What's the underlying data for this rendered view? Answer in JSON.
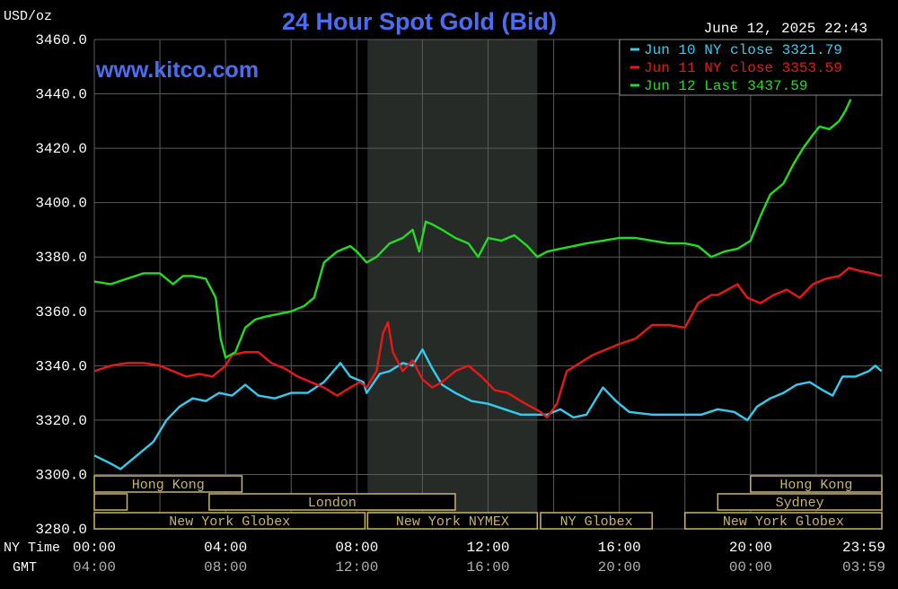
{
  "header": {
    "unit": "USD/oz",
    "title": "24 Hour Spot Gold (Bid)",
    "timestamp": "June 12, 2025 22:43",
    "watermark": "www.kitco.com"
  },
  "colors": {
    "background": "#000000",
    "grid": "#5a5a5a",
    "axis_text": "#ffffff",
    "time_text": "#b0b0b0",
    "title": "#4d6df0",
    "session_box": "#c9b46a",
    "nymex_shade": "#272b27"
  },
  "time_axis": {
    "ny_label": "NY Time",
    "gmt_label": "GMT",
    "ny_ticks": [
      "00:00",
      "04:00",
      "08:00",
      "12:00",
      "16:00",
      "20:00",
      "23:59"
    ],
    "gmt_ticks": [
      "04:00",
      "08:00",
      "12:00",
      "16:00",
      "20:00",
      "00:00",
      "03:59"
    ]
  },
  "sessions": {
    "row1": [
      {
        "label": "Hong Kong",
        "start_h": 0.0,
        "end_h": 4.5
      },
      {
        "label": "Hong Kong",
        "start_h": 20.0,
        "end_h": 23.99
      }
    ],
    "row2": [
      {
        "label": "",
        "start_h": 0.0,
        "end_h": 1.0
      },
      {
        "label": "London",
        "start_h": 3.5,
        "end_h": 11.0
      },
      {
        "label": "Sydney",
        "start_h": 19.0,
        "end_h": 23.99
      }
    ],
    "row3": [
      {
        "label": "New York Globex",
        "start_h": 0.0,
        "end_h": 8.25
      },
      {
        "label": "New York NYMEX",
        "start_h": 8.33,
        "end_h": 13.5
      },
      {
        "label": "NY Globex",
        "start_h": 13.6,
        "end_h": 17.0
      },
      {
        "label": "New York Globex",
        "start_h": 18.0,
        "end_h": 23.99
      }
    ]
  },
  "chart_data": {
    "type": "line",
    "title": "24 Hour Spot Gold (Bid)",
    "ylabel": "USD/oz",
    "ylim": [
      3280,
      3460
    ],
    "xlim_hours": [
      0,
      24
    ],
    "y_ticks": [
      "3460.0",
      "3440.0",
      "3420.0",
      "3400.0",
      "3380.0",
      "3360.0",
      "3340.0",
      "3320.0",
      "3300.0",
      "3280.0"
    ],
    "grid": true,
    "legend_position": "top-right",
    "shaded_session_hours": [
      8.33,
      13.5
    ],
    "series": [
      {
        "name": "Jun 10 NY close 3321.79",
        "color": "#33ccee",
        "points": [
          [
            0.0,
            3307
          ],
          [
            0.5,
            3304
          ],
          [
            0.8,
            3302
          ],
          [
            1.2,
            3306
          ],
          [
            1.8,
            3312
          ],
          [
            2.2,
            3320
          ],
          [
            2.6,
            3325
          ],
          [
            3.0,
            3328
          ],
          [
            3.4,
            3327
          ],
          [
            3.8,
            3330
          ],
          [
            4.2,
            3329
          ],
          [
            4.6,
            3333
          ],
          [
            5.0,
            3329
          ],
          [
            5.5,
            3328
          ],
          [
            6.0,
            3330
          ],
          [
            6.5,
            3330
          ],
          [
            7.0,
            3334
          ],
          [
            7.5,
            3341
          ],
          [
            7.8,
            3336
          ],
          [
            8.2,
            3334
          ],
          [
            8.3,
            3330
          ],
          [
            8.7,
            3337
          ],
          [
            9.0,
            3338
          ],
          [
            9.4,
            3341
          ],
          [
            9.7,
            3340
          ],
          [
            10.0,
            3346
          ],
          [
            10.3,
            3339
          ],
          [
            10.6,
            3333
          ],
          [
            11.0,
            3330
          ],
          [
            11.5,
            3327
          ],
          [
            12.0,
            3326
          ],
          [
            12.5,
            3324
          ],
          [
            13.0,
            3322
          ],
          [
            13.5,
            3322
          ],
          [
            13.8,
            3322
          ],
          [
            14.2,
            3324
          ],
          [
            14.6,
            3321
          ],
          [
            15.0,
            3322
          ],
          [
            15.5,
            3332
          ],
          [
            15.9,
            3327
          ],
          [
            16.3,
            3323
          ],
          [
            17.0,
            3322
          ],
          [
            17.5,
            3322
          ],
          [
            18.0,
            3322
          ],
          [
            18.5,
            3322
          ],
          [
            19.0,
            3324
          ],
          [
            19.5,
            3323
          ],
          [
            19.9,
            3320
          ],
          [
            20.2,
            3325
          ],
          [
            20.6,
            3328
          ],
          [
            21.0,
            3330
          ],
          [
            21.4,
            3333
          ],
          [
            21.8,
            3334
          ],
          [
            22.2,
            3331
          ],
          [
            22.5,
            3329
          ],
          [
            22.8,
            3336
          ],
          [
            23.2,
            3336
          ],
          [
            23.6,
            3338
          ],
          [
            23.8,
            3340
          ],
          [
            23.99,
            3338
          ]
        ]
      },
      {
        "name": "Jun 11 NY close 3353.59",
        "color": "#e81818",
        "points": [
          [
            0.0,
            3338
          ],
          [
            0.5,
            3340
          ],
          [
            1.0,
            3341
          ],
          [
            1.5,
            3341
          ],
          [
            2.0,
            3340
          ],
          [
            2.4,
            3338
          ],
          [
            2.8,
            3336
          ],
          [
            3.2,
            3337
          ],
          [
            3.6,
            3336
          ],
          [
            4.0,
            3340
          ],
          [
            4.2,
            3344
          ],
          [
            4.6,
            3345
          ],
          [
            5.0,
            3345
          ],
          [
            5.4,
            3341
          ],
          [
            5.8,
            3339
          ],
          [
            6.2,
            3336
          ],
          [
            6.6,
            3334
          ],
          [
            7.0,
            3332
          ],
          [
            7.4,
            3329
          ],
          [
            7.8,
            3332
          ],
          [
            8.1,
            3334
          ],
          [
            8.3,
            3332
          ],
          [
            8.6,
            3338
          ],
          [
            8.8,
            3352
          ],
          [
            8.95,
            3356
          ],
          [
            9.1,
            3345
          ],
          [
            9.4,
            3338
          ],
          [
            9.7,
            3342
          ],
          [
            10.0,
            3335
          ],
          [
            10.3,
            3332
          ],
          [
            10.6,
            3334
          ],
          [
            11.0,
            3338
          ],
          [
            11.4,
            3340
          ],
          [
            11.8,
            3336
          ],
          [
            12.2,
            3331
          ],
          [
            12.6,
            3330
          ],
          [
            13.0,
            3327
          ],
          [
            13.3,
            3325
          ],
          [
            13.6,
            3323
          ],
          [
            13.8,
            3321
          ],
          [
            14.1,
            3326
          ],
          [
            14.4,
            3338
          ],
          [
            14.8,
            3341
          ],
          [
            15.2,
            3344
          ],
          [
            15.6,
            3346
          ],
          [
            16.0,
            3348
          ],
          [
            16.5,
            3350
          ],
          [
            17.0,
            3355
          ],
          [
            17.5,
            3355
          ],
          [
            18.0,
            3354
          ],
          [
            18.4,
            3363
          ],
          [
            18.8,
            3366
          ],
          [
            19.0,
            3366
          ],
          [
            19.3,
            3368
          ],
          [
            19.6,
            3370
          ],
          [
            19.9,
            3365
          ],
          [
            20.3,
            3363
          ],
          [
            20.7,
            3366
          ],
          [
            21.1,
            3368
          ],
          [
            21.5,
            3365
          ],
          [
            21.9,
            3370
          ],
          [
            22.3,
            3372
          ],
          [
            22.7,
            3373
          ],
          [
            23.0,
            3376
          ],
          [
            23.3,
            3375
          ],
          [
            23.7,
            3374
          ],
          [
            23.99,
            3373
          ]
        ]
      },
      {
        "name": "Jun 12 Last 3437.59",
        "color": "#22dd22",
        "points": [
          [
            0.0,
            3371
          ],
          [
            0.5,
            3370
          ],
          [
            1.0,
            3372
          ],
          [
            1.5,
            3374
          ],
          [
            2.0,
            3374
          ],
          [
            2.4,
            3370
          ],
          [
            2.7,
            3373
          ],
          [
            3.0,
            3373
          ],
          [
            3.4,
            3372
          ],
          [
            3.7,
            3365
          ],
          [
            3.85,
            3350
          ],
          [
            4.0,
            3343
          ],
          [
            4.3,
            3345
          ],
          [
            4.6,
            3354
          ],
          [
            4.9,
            3357
          ],
          [
            5.2,
            3358
          ],
          [
            5.6,
            3359
          ],
          [
            6.0,
            3360
          ],
          [
            6.4,
            3362
          ],
          [
            6.7,
            3365
          ],
          [
            7.0,
            3378
          ],
          [
            7.4,
            3382
          ],
          [
            7.8,
            3384
          ],
          [
            8.0,
            3382
          ],
          [
            8.3,
            3378
          ],
          [
            8.6,
            3380
          ],
          [
            9.0,
            3385
          ],
          [
            9.4,
            3387
          ],
          [
            9.7,
            3390
          ],
          [
            9.9,
            3382
          ],
          [
            10.1,
            3393
          ],
          [
            10.3,
            3392
          ],
          [
            10.6,
            3390
          ],
          [
            11.0,
            3387
          ],
          [
            11.4,
            3385
          ],
          [
            11.7,
            3380
          ],
          [
            12.0,
            3387
          ],
          [
            12.4,
            3386
          ],
          [
            12.8,
            3388
          ],
          [
            13.2,
            3384
          ],
          [
            13.5,
            3380
          ],
          [
            13.8,
            3382
          ],
          [
            14.2,
            3383
          ],
          [
            14.6,
            3384
          ],
          [
            15.0,
            3385
          ],
          [
            15.5,
            3386
          ],
          [
            16.0,
            3387
          ],
          [
            16.5,
            3387
          ],
          [
            17.0,
            3386
          ],
          [
            17.5,
            3385
          ],
          [
            18.0,
            3385
          ],
          [
            18.4,
            3384
          ],
          [
            18.8,
            3380
          ],
          [
            19.2,
            3382
          ],
          [
            19.6,
            3383
          ],
          [
            20.0,
            3386
          ],
          [
            20.3,
            3395
          ],
          [
            20.6,
            3403
          ],
          [
            21.0,
            3407
          ],
          [
            21.3,
            3414
          ],
          [
            21.6,
            3420
          ],
          [
            21.9,
            3425
          ],
          [
            22.1,
            3428
          ],
          [
            22.4,
            3427
          ],
          [
            22.7,
            3430
          ],
          [
            22.9,
            3434
          ],
          [
            23.05,
            3438
          ]
        ]
      }
    ]
  }
}
